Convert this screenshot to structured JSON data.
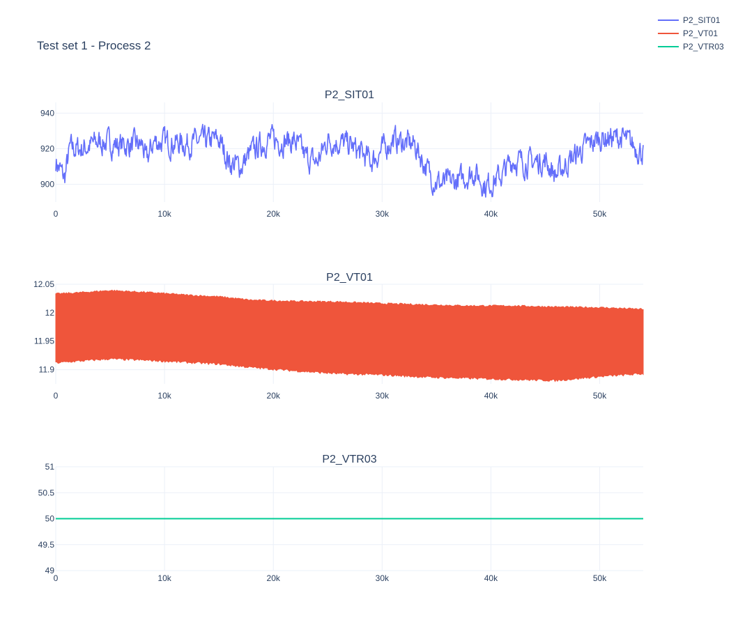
{
  "title": "Test set 1 - Process 2",
  "legend": [
    {
      "name": "P2_SIT01",
      "color": "#636efa"
    },
    {
      "name": "P2_VT01",
      "color": "#ef553b"
    },
    {
      "name": "P2_VTR03",
      "color": "#00cc96"
    }
  ],
  "chart_data": [
    {
      "type": "line",
      "title": "P2_SIT01",
      "series": [
        {
          "name": "P2_SIT01",
          "color": "#636efa"
        }
      ],
      "xlim": [
        0,
        54000
      ],
      "ylim": [
        890,
        946
      ],
      "x_ticks": [
        0,
        10000,
        20000,
        30000,
        40000,
        50000
      ],
      "x_tick_labels": [
        "0",
        "10k",
        "20k",
        "30k",
        "40k",
        "50k"
      ],
      "y_ticks": [
        900,
        920,
        940
      ],
      "y_tick_labels": [
        "900",
        "920",
        "940"
      ],
      "grid": true,
      "profile_x": [
        0,
        800,
        1300,
        2500,
        4000,
        6000,
        8000,
        8300,
        9000,
        12000,
        15000,
        16000,
        17000,
        18000,
        19500,
        22000,
        23000,
        24000,
        25000,
        27000,
        29000,
        31000,
        33000,
        34500,
        35500,
        37000,
        38500,
        39500,
        41000,
        42000,
        43000,
        45000,
        46000,
        47000,
        48500,
        50000,
        52000,
        54000
      ],
      "profile_y": [
        913,
        903,
        920,
        920,
        924,
        922,
        922,
        912,
        924,
        923,
        925,
        912,
        910,
        918,
        925,
        924,
        915,
        912,
        925,
        922,
        913,
        925,
        922,
        904,
        900,
        902,
        907,
        899,
        905,
        914,
        912,
        913,
        905,
        912,
        920,
        926,
        926,
        918
      ],
      "noise_amplitude": 7
    },
    {
      "type": "line",
      "title": "P2_VT01",
      "series": [
        {
          "name": "P2_VT01",
          "color": "#ef553b"
        }
      ],
      "xlim": [
        0,
        54000
      ],
      "ylim": [
        11.875,
        12.05
      ],
      "x_ticks": [
        0,
        10000,
        20000,
        30000,
        40000,
        50000
      ],
      "x_tick_labels": [
        "0",
        "10k",
        "20k",
        "30k",
        "40k",
        "50k"
      ],
      "y_ticks": [
        11.9,
        11.95,
        12,
        12.05
      ],
      "y_tick_labels": [
        "11.9",
        "11.95",
        "12",
        "12.05"
      ],
      "grid": true,
      "upper_x": [
        0,
        2000,
        5000,
        9000,
        12000,
        15000,
        18000,
        22000,
        26000,
        30000,
        34000,
        38000,
        42000,
        46000,
        50000,
        54000
      ],
      "upper_y": [
        12.033,
        12.035,
        12.039,
        12.035,
        12.031,
        12.028,
        12.022,
        12.02,
        12.019,
        12.016,
        12.014,
        12.012,
        12.012,
        12.01,
        12.009,
        12.006
      ],
      "lower_x": [
        0,
        2000,
        5000,
        9000,
        12000,
        15000,
        18000,
        22000,
        26000,
        30000,
        34000,
        38000,
        42000,
        46000,
        50000,
        54000
      ],
      "lower_y": [
        11.912,
        11.915,
        11.919,
        11.916,
        11.913,
        11.91,
        11.904,
        11.898,
        11.893,
        11.891,
        11.887,
        11.885,
        11.883,
        11.881,
        11.888,
        11.893
      ]
    },
    {
      "type": "line",
      "title": "P2_VTR03",
      "series": [
        {
          "name": "P2_VTR03",
          "color": "#00cc96"
        }
      ],
      "x": [
        0,
        54000
      ],
      "y": [
        50,
        50
      ],
      "xlim": [
        0,
        54000
      ],
      "ylim": [
        49,
        51
      ],
      "x_ticks": [
        0,
        10000,
        20000,
        30000,
        40000,
        50000
      ],
      "x_tick_labels": [
        "0",
        "10k",
        "20k",
        "30k",
        "40k",
        "50k"
      ],
      "y_ticks": [
        49,
        49.5,
        50,
        50.5,
        51
      ],
      "y_tick_labels": [
        "49",
        "49.5",
        "50",
        "50.5",
        "51"
      ],
      "grid": true
    }
  ]
}
